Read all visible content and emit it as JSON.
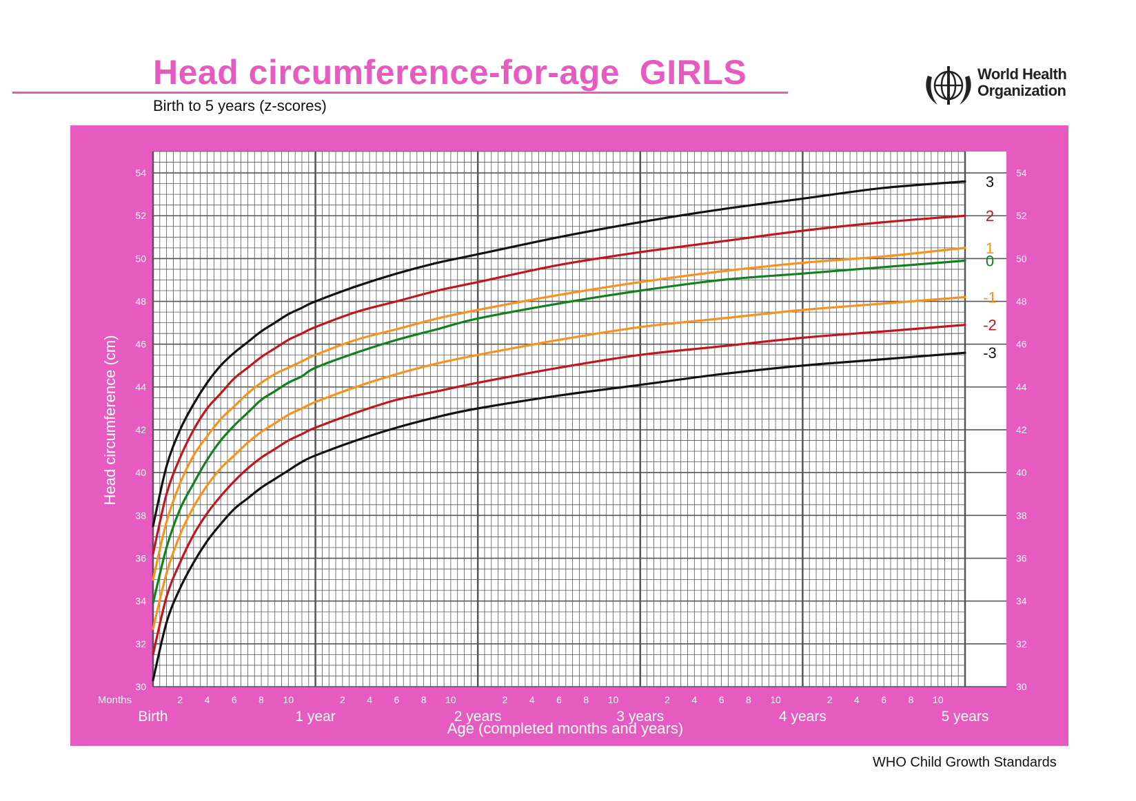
{
  "header": {
    "title": "Head circumference-for-age  GIRLS",
    "subtitle": "Birth to 5 years (z-scores)",
    "org_line1": "World Health",
    "org_line2": "Organization"
  },
  "footer": {
    "text": "WHO Child Growth Standards"
  },
  "colors": {
    "frame": "#e55bc0",
    "grid": "#555555",
    "black": "#111111",
    "red": "#c0161f",
    "orange": "#f7921e",
    "green": "#11801e"
  },
  "chart_data": {
    "type": "line",
    "title": "Head circumference-for-age  GIRLS",
    "ylabel": "Head circumference (cm)",
    "xlabel": "Age (completed months and years)",
    "xlim": [
      0,
      60
    ],
    "ylim": [
      30,
      55
    ],
    "grid": true,
    "y_ticks": [
      "30",
      "32",
      "34",
      "36",
      "38",
      "40",
      "42",
      "44",
      "46",
      "48",
      "50",
      "52",
      "54"
    ],
    "month_axis_label": "Months",
    "month_ticks": [
      "2",
      "4",
      "6",
      "8",
      "10"
    ],
    "year_labels": [
      "Birth",
      "1 year",
      "2 years",
      "3 years",
      "4 years",
      "5 years"
    ],
    "x_months": [
      0,
      1,
      2,
      3,
      4,
      5,
      6,
      7,
      8,
      9,
      10,
      11,
      12,
      15,
      18,
      21,
      24,
      30,
      36,
      42,
      48,
      54,
      60
    ],
    "series": [
      {
        "name": "3",
        "color": "black",
        "values": [
          37.5,
          40.3,
          42.0,
          43.2,
          44.2,
          45.0,
          45.6,
          46.1,
          46.6,
          47.0,
          47.4,
          47.7,
          48.0,
          48.7,
          49.3,
          49.8,
          50.2,
          51.0,
          51.7,
          52.3,
          52.8,
          53.3,
          53.6
        ]
      },
      {
        "name": "2",
        "color": "red",
        "values": [
          36.2,
          39.0,
          40.7,
          42.0,
          43.0,
          43.7,
          44.4,
          44.9,
          45.4,
          45.8,
          46.2,
          46.5,
          46.8,
          47.5,
          48.0,
          48.5,
          48.9,
          49.7,
          50.3,
          50.8,
          51.3,
          51.7,
          52.0
        ]
      },
      {
        "name": "1",
        "color": "orange",
        "values": [
          35.0,
          37.7,
          39.5,
          40.8,
          41.7,
          42.5,
          43.1,
          43.7,
          44.2,
          44.6,
          44.9,
          45.2,
          45.5,
          46.2,
          46.7,
          47.2,
          47.6,
          48.3,
          48.9,
          49.4,
          49.8,
          50.1,
          50.5
        ]
      },
      {
        "name": "0",
        "color": "green",
        "values": [
          33.9,
          36.5,
          38.3,
          39.5,
          40.6,
          41.5,
          42.2,
          42.8,
          43.4,
          43.8,
          44.2,
          44.5,
          44.9,
          45.6,
          46.2,
          46.7,
          47.2,
          47.9,
          48.5,
          49.0,
          49.3,
          49.6,
          49.9
        ]
      },
      {
        "name": "-1",
        "color": "orange",
        "values": [
          32.7,
          35.3,
          37.1,
          38.4,
          39.4,
          40.2,
          40.8,
          41.4,
          41.9,
          42.3,
          42.7,
          43.0,
          43.3,
          44.0,
          44.6,
          45.1,
          45.5,
          46.2,
          46.8,
          47.2,
          47.6,
          47.9,
          48.2
        ]
      },
      {
        "name": "-2",
        "color": "red",
        "values": [
          31.5,
          34.2,
          35.8,
          37.1,
          38.1,
          38.9,
          39.6,
          40.2,
          40.7,
          41.1,
          41.5,
          41.8,
          42.1,
          42.8,
          43.4,
          43.8,
          44.2,
          44.9,
          45.5,
          45.9,
          46.3,
          46.6,
          46.9
        ]
      },
      {
        "name": "-3",
        "color": "black",
        "values": [
          30.3,
          33.0,
          34.6,
          35.8,
          36.8,
          37.6,
          38.3,
          38.8,
          39.3,
          39.7,
          40.1,
          40.5,
          40.8,
          41.5,
          42.1,
          42.6,
          43.0,
          43.6,
          44.1,
          44.6,
          45.0,
          45.3,
          45.6
        ]
      }
    ]
  }
}
